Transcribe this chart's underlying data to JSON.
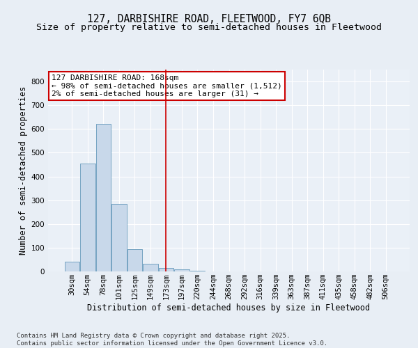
{
  "title_line1": "127, DARBISHIRE ROAD, FLEETWOOD, FY7 6QB",
  "title_line2": "Size of property relative to semi-detached houses in Fleetwood",
  "xlabel": "Distribution of semi-detached houses by size in Fleetwood",
  "ylabel": "Number of semi-detached properties",
  "categories": [
    "30sqm",
    "54sqm",
    "78sqm",
    "101sqm",
    "125sqm",
    "149sqm",
    "173sqm",
    "197sqm",
    "220sqm",
    "244sqm",
    "268sqm",
    "292sqm",
    "316sqm",
    "339sqm",
    "363sqm",
    "387sqm",
    "411sqm",
    "435sqm",
    "458sqm",
    "482sqm",
    "506sqm"
  ],
  "values": [
    40,
    455,
    620,
    285,
    93,
    33,
    15,
    8,
    2,
    0,
    0,
    0,
    0,
    0,
    0,
    0,
    0,
    0,
    0,
    0,
    0
  ],
  "bar_color": "#c8d8ea",
  "bar_edge_color": "#6699bb",
  "vline_bin_index": 6,
  "vline_color": "#cc0000",
  "annotation_text": "127 DARBISHIRE ROAD: 168sqm\n← 98% of semi-detached houses are smaller (1,512)\n2% of semi-detached houses are larger (31) →",
  "annotation_box_color": "#cc0000",
  "ylim": [
    0,
    850
  ],
  "yticks": [
    0,
    100,
    200,
    300,
    400,
    500,
    600,
    700,
    800
  ],
  "footnote": "Contains HM Land Registry data © Crown copyright and database right 2025.\nContains public sector information licensed under the Open Government Licence v3.0.",
  "bg_color": "#e8eef5",
  "plot_bg_color": "#eaf0f7",
  "grid_color": "#ffffff",
  "title_fontsize": 10.5,
  "subtitle_fontsize": 9.5,
  "axis_label_fontsize": 8.5,
  "tick_fontsize": 7.5,
  "annotation_fontsize": 8,
  "footnote_fontsize": 6.5
}
